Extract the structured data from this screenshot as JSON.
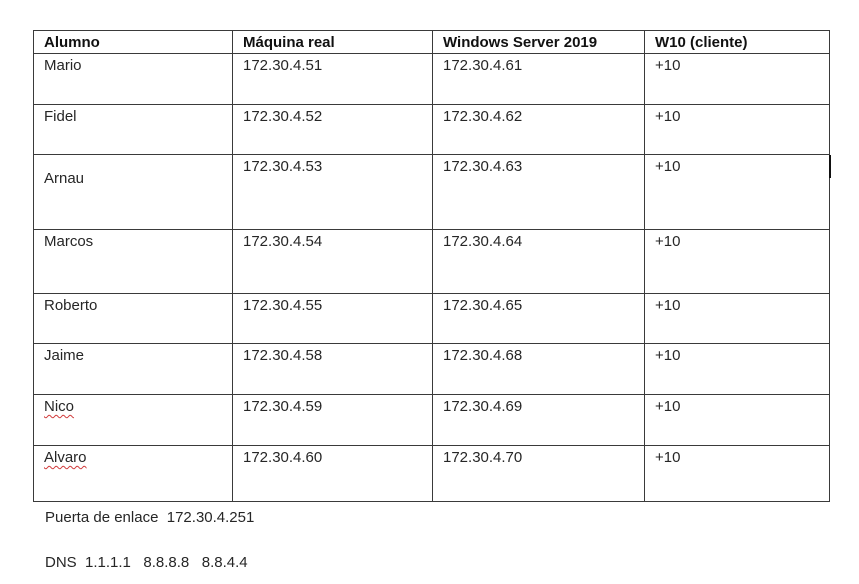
{
  "table": {
    "headers": [
      "Alumno",
      "Máquina real",
      "Windows Server 2019",
      "W10 (cliente)"
    ],
    "rows": [
      [
        "Mario",
        "172.30.4.51",
        "172.30.4.61",
        "+10"
      ],
      [
        "Fidel",
        "172.30.4.52",
        "172.30.4.62",
        "+10"
      ],
      [
        "Arnau",
        "172.30.4.53",
        "172.30.4.63",
        "+10"
      ],
      [
        "Marcos",
        "172.30.4.54",
        "172.30.4.64",
        "+10"
      ],
      [
        "Roberto",
        "172.30.4.55",
        "172.30.4.65",
        "+10"
      ],
      [
        "Jaime",
        "172.30.4.58",
        "172.30.4.68",
        "+10"
      ],
      [
        "Nico",
        "172.30.4.59",
        "172.30.4.69",
        "+10"
      ],
      [
        "Alvaro",
        "172.30.4.60",
        "172.30.4.70",
        "+10"
      ]
    ]
  },
  "notes": {
    "gateway": "Puerta de enlace  172.30.4.251",
    "dns": "DNS  1.1.1.1   8.8.8.8   8.8.4.4"
  }
}
